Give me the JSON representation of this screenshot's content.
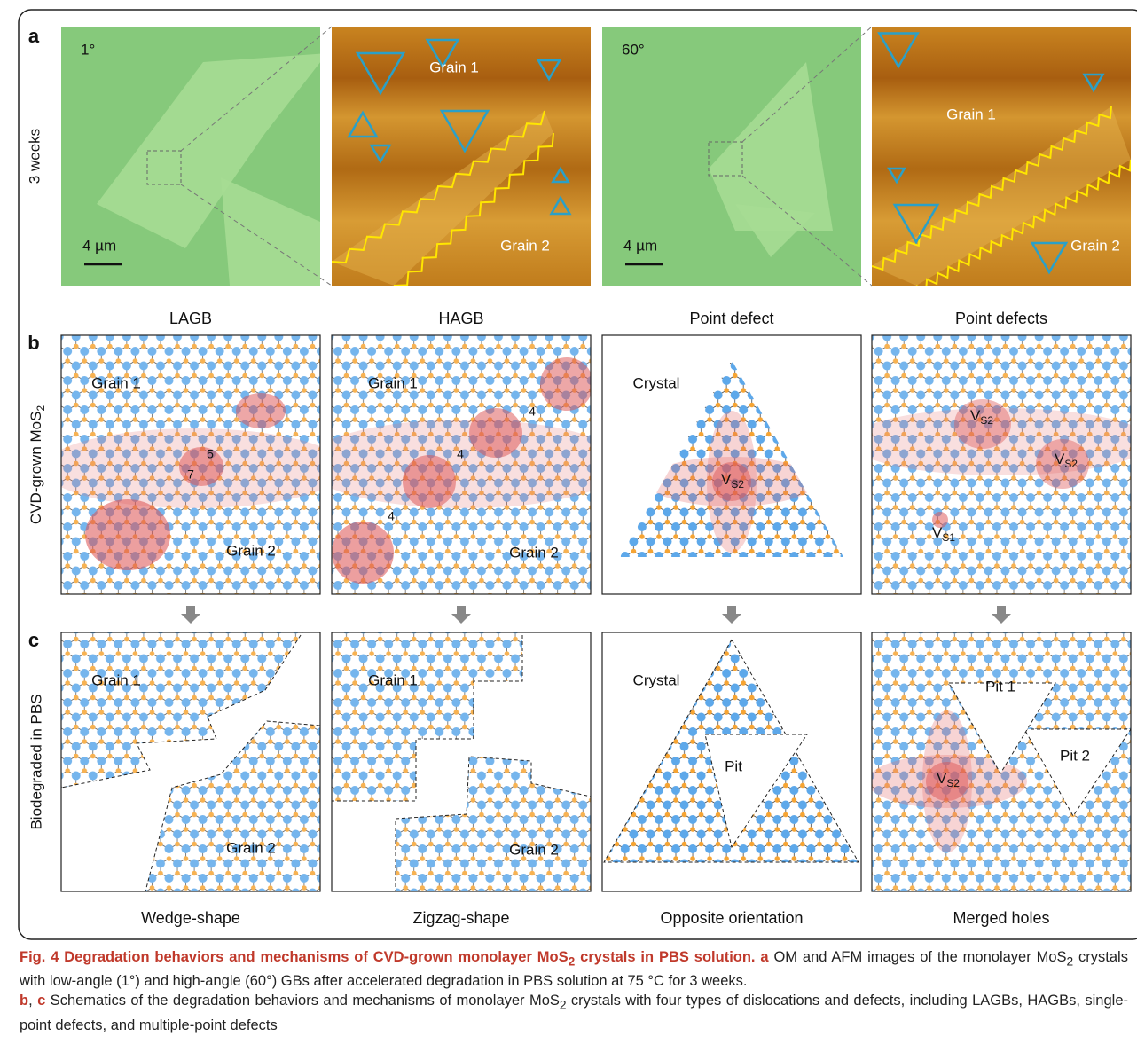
{
  "panel_a": {
    "label": "a",
    "row_label": "3 weeks",
    "images": [
      {
        "angle": "1°",
        "scale": "4 µm"
      },
      {
        "grain_1": "Grain 1",
        "grain_2": "Grain 2"
      },
      {
        "angle": "60°",
        "scale": "4 µm"
      },
      {
        "grain_1": "Grain 1",
        "grain_2": "Grain 2"
      }
    ]
  },
  "columns": [
    "LAGB",
    "HAGB",
    "Point defect",
    "Point defects"
  ],
  "panel_b": {
    "label": "b",
    "row_label": {
      "text": "CVD-grown MoS",
      "sub": "2"
    },
    "schemes": [
      {
        "labels": [
          "Grain 1",
          "5",
          "7",
          "Grain 2"
        ]
      },
      {
        "labels": [
          "Grain 1",
          "4",
          "4",
          "4",
          "Grain 2"
        ]
      },
      {
        "labels": [
          "Crystal",
          {
            "text": "V",
            "sub": "S2"
          }
        ]
      },
      {
        "labels": [
          {
            "text": "V",
            "sub": "S2"
          },
          {
            "text": "V",
            "sub": "S2"
          },
          {
            "text": "V",
            "sub": "S1"
          }
        ]
      }
    ]
  },
  "panel_c": {
    "label": "c",
    "row_label": "Biodegraded in PBS",
    "schemes": [
      {
        "labels": [
          "Grain 1",
          "Grain 2"
        ]
      },
      {
        "labels": [
          "Grain 1",
          "Grain 2"
        ]
      },
      {
        "labels": [
          "Crystal",
          "Pit"
        ]
      },
      {
        "labels": [
          "Pit 1",
          "Pit 2",
          {
            "text": "V",
            "sub": "S2"
          }
        ]
      }
    ]
  },
  "bottom_labels": [
    "Wedge-shape",
    "Zigzag-shape",
    "Opposite orientation",
    "Merged holes"
  ],
  "caption": [
    [
      {
        "text": "Fig. 4 Degradation behaviors and mechanisms of CVD-grown monolayer MoS",
        "bold": true
      },
      {
        "text": "2",
        "bold": true,
        "sub": true
      },
      {
        "text": " crystals in PBS solution. a",
        "bold": true
      },
      {
        "text": " OM and AFM images of the monolayer MoS"
      },
      {
        "text": "2",
        "sub": true
      },
      {
        "text": " crystals with low-angle (1°) and high-angle (60°) GBs after accelerated degradation in PBS solution at 75 °C for 3 weeks."
      }
    ],
    [
      {
        "text": "b",
        "bold": true
      },
      {
        "text": ", "
      },
      {
        "text": "c",
        "bold": true
      },
      {
        "text": " Schematics of the degradation behaviors and mechanisms of monolayer MoS"
      },
      {
        "text": "2",
        "sub": true
      },
      {
        "text": " crystals with four types of dislocations and defects, including LAGBs, HAGBs, single-point defects, and multiple-point defects"
      }
    ]
  ]
}
